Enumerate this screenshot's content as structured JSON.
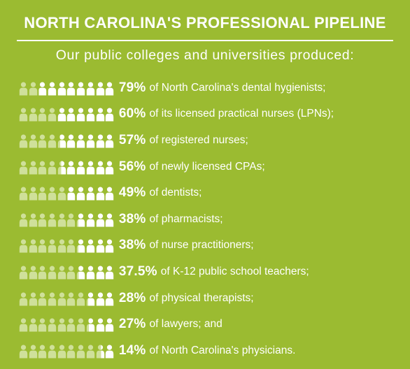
{
  "title": "NORTH CAROLINA'S  PROFESSIONAL PIPELINE",
  "subtitle": "Our public colleges and universities produced:",
  "colors": {
    "background": "#9bbb31",
    "filled": "#ffffff",
    "faded": "#cfe09a"
  },
  "icon": "person-icon",
  "icon_count": 10,
  "rows": [
    {
      "percent": "79%",
      "fraction": 0.79,
      "text": "of North Carolina's dental hygienists;"
    },
    {
      "percent": "60%",
      "fraction": 0.6,
      "text": "of its licensed practical nurses (LPNs);"
    },
    {
      "percent": "57%",
      "fraction": 0.57,
      "text": "of registered nurses;"
    },
    {
      "percent": "56%",
      "fraction": 0.56,
      "text": "of newly licensed CPAs;"
    },
    {
      "percent": "49%",
      "fraction": 0.49,
      "text": "of dentists;"
    },
    {
      "percent": "38%",
      "fraction": 0.38,
      "text": "of pharmacists;"
    },
    {
      "percent": "38%",
      "fraction": 0.38,
      "text": "of nurse practitioners;"
    },
    {
      "percent": "37.5%",
      "fraction": 0.375,
      "text": "of K-12 public school teachers;"
    },
    {
      "percent": "28%",
      "fraction": 0.28,
      "text": "of physical therapists;"
    },
    {
      "percent": "27%",
      "fraction": 0.27,
      "text": "of lawyers; and"
    },
    {
      "percent": "14%",
      "fraction": 0.14,
      "text": "of North Carolina's physicians."
    }
  ]
}
